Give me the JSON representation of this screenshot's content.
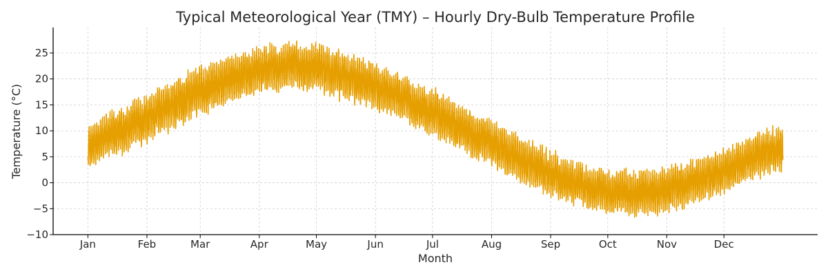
{
  "chart_data": {
    "type": "line",
    "title": "Typical Meteorological Year (TMY) – Hourly Dry-Bulb Temperature Profile",
    "xlabel": "Month",
    "ylabel": "Temperature (°C)",
    "x_unit": "hour of year",
    "xlim": [
      -438,
      9197
    ],
    "ylim": [
      -10,
      29.9
    ],
    "grid": true,
    "x_ticks": [
      {
        "label": "Jan",
        "day": 0
      },
      {
        "label": "Feb",
        "day": 31
      },
      {
        "label": "Mar",
        "day": 59
      },
      {
        "label": "Apr",
        "day": 90
      },
      {
        "label": "May",
        "day": 120
      },
      {
        "label": "Jun",
        "day": 151
      },
      {
        "label": "Jul",
        "day": 181
      },
      {
        "label": "Aug",
        "day": 212
      },
      {
        "label": "Sep",
        "day": 243
      },
      {
        "label": "Oct",
        "day": 273
      },
      {
        "label": "Nov",
        "day": 304
      },
      {
        "label": "Dec",
        "day": 334
      }
    ],
    "y_ticks": [
      -10,
      -5,
      0,
      5,
      10,
      15,
      20,
      25
    ],
    "series": [
      {
        "color": "#E69F00",
        "hours": 8760,
        "envelope_by_day": [
          {
            "day": 0,
            "min": 2.5,
            "max": 11
          },
          {
            "day": 15,
            "min": 5,
            "max": 14
          },
          {
            "day": 31,
            "min": 8,
            "max": 17
          },
          {
            "day": 45,
            "min": 10.5,
            "max": 20
          },
          {
            "day": 59,
            "min": 13,
            "max": 22.5
          },
          {
            "day": 75,
            "min": 15.5,
            "max": 24.5
          },
          {
            "day": 90,
            "min": 17,
            "max": 26
          },
          {
            "day": 105,
            "min": 18,
            "max": 27
          },
          {
            "day": 120,
            "min": 17.5,
            "max": 26.5
          },
          {
            "day": 135,
            "min": 16,
            "max": 25
          },
          {
            "day": 151,
            "min": 14,
            "max": 23
          },
          {
            "day": 166,
            "min": 12,
            "max": 20.5
          },
          {
            "day": 181,
            "min": 9,
            "max": 18
          },
          {
            "day": 196,
            "min": 6,
            "max": 15
          },
          {
            "day": 212,
            "min": 3,
            "max": 12
          },
          {
            "day": 227,
            "min": 0,
            "max": 9
          },
          {
            "day": 243,
            "min": -2.5,
            "max": 6
          },
          {
            "day": 258,
            "min": -4.5,
            "max": 4
          },
          {
            "day": 273,
            "min": -6,
            "max": 2.5
          },
          {
            "day": 288,
            "min": -6.5,
            "max": 2.5
          },
          {
            "day": 304,
            "min": -6,
            "max": 3
          },
          {
            "day": 319,
            "min": -4,
            "max": 4.5
          },
          {
            "day": 334,
            "min": -2,
            "max": 6.5
          },
          {
            "day": 349,
            "min": 0.5,
            "max": 9
          },
          {
            "day": 365,
            "min": 2.5,
            "max": 11.5
          }
        ]
      }
    ]
  }
}
